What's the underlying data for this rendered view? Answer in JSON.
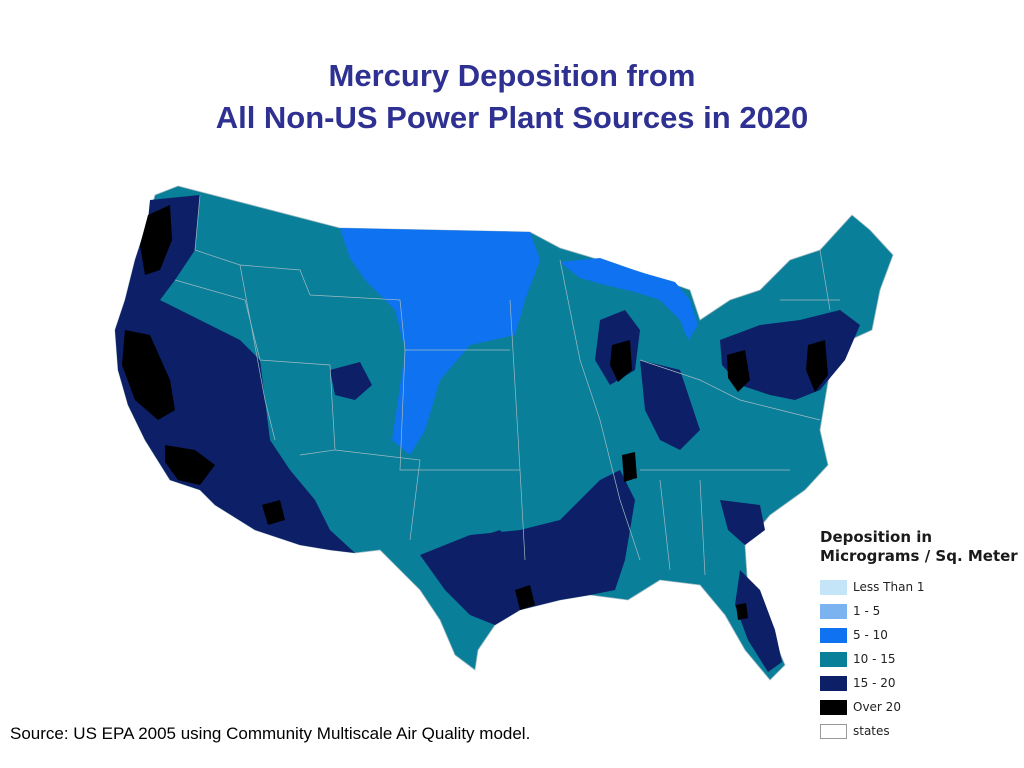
{
  "title": {
    "line1": "Mercury Deposition from",
    "line2": "All Non-US Power Plant Sources in 2020"
  },
  "legend": {
    "title_line1": "Deposition in",
    "title_line2": "Micrograms / Sq. Meter",
    "items": [
      {
        "label": "Less Than 1",
        "color": "#c4e4f7"
      },
      {
        "label": "1 - 5",
        "color": "#7ab3f0"
      },
      {
        "label": "5 - 10",
        "color": "#0f72f0"
      },
      {
        "label": "10 - 15",
        "color": "#0a7f9a"
      },
      {
        "label": "15 - 20",
        "color": "#0d1f66"
      },
      {
        "label": "Over 20",
        "color": "#000000"
      },
      {
        "label": "states",
        "color": "#ffffff"
      }
    ]
  },
  "source": "Source: US EPA 2005 using Community Multiscale Air Quality model."
}
